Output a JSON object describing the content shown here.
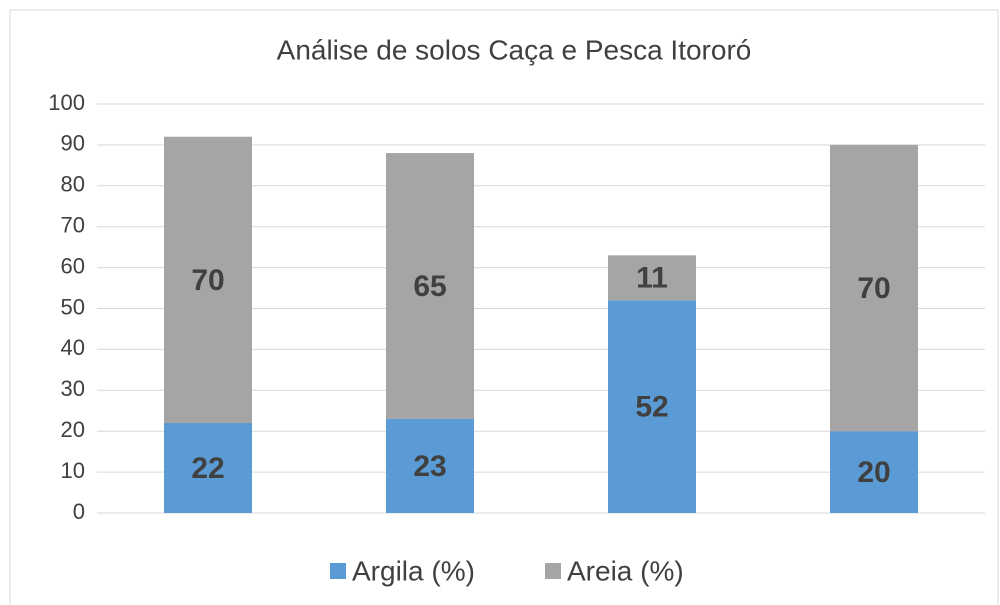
{
  "chart_data": {
    "type": "stacked_bar",
    "title": "Análise de solos Caça e Pesca Itororó",
    "categories": [
      null,
      null,
      null,
      null
    ],
    "series": [
      {
        "name": "Argila (%)",
        "color": "#5b9bd5",
        "values": [
          22,
          23,
          52,
          20
        ]
      },
      {
        "name": "Areia (%)",
        "color": "#a5a5a5",
        "values": [
          70,
          65,
          11,
          70
        ]
      }
    ],
    "ylim": [
      0,
      100
    ],
    "yticks": [
      0,
      10,
      20,
      30,
      40,
      50,
      60,
      70,
      80,
      90,
      100
    ],
    "grid": true,
    "legend": "bottom"
  }
}
